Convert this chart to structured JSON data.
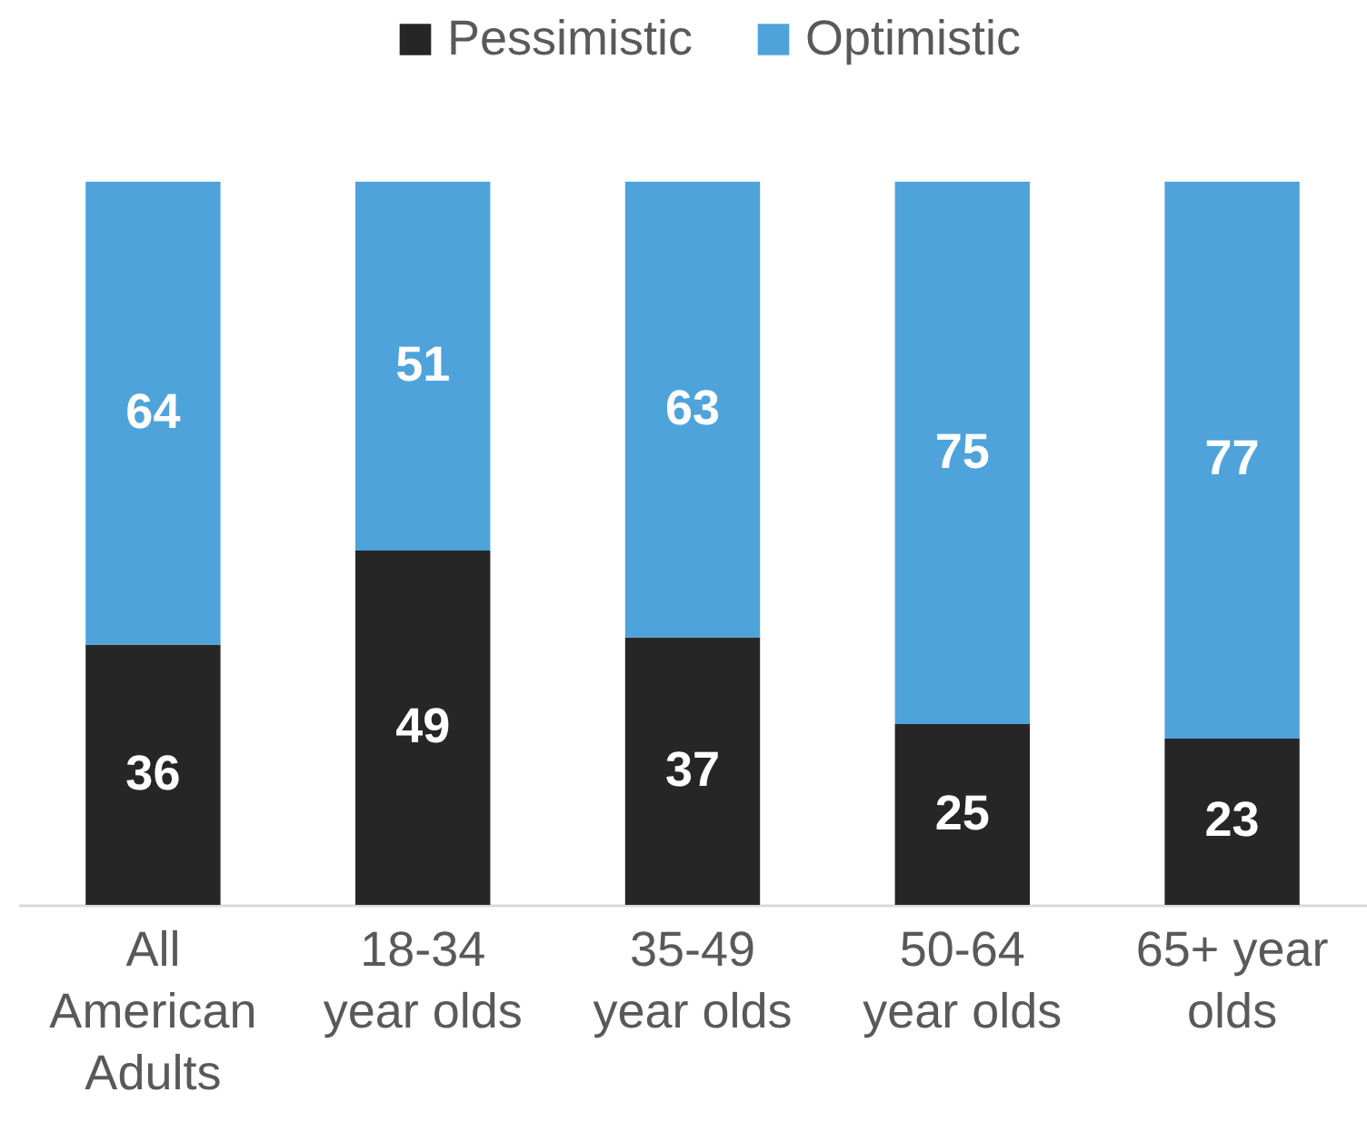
{
  "chart_data": {
    "type": "bar",
    "stacked": true,
    "categories": [
      "All American Adults",
      "18-34 year olds",
      "35-49 year olds",
      "50-64 year olds",
      "65+ year olds"
    ],
    "series": [
      {
        "name": "Pessimistic",
        "color": "#262626",
        "values": [
          36,
          49,
          37,
          25,
          23
        ]
      },
      {
        "name": "Optimistic",
        "color": "#4fa3db",
        "values": [
          64,
          51,
          63,
          75,
          77
        ]
      }
    ],
    "data_labels": true,
    "legend": "top",
    "grid": false
  }
}
